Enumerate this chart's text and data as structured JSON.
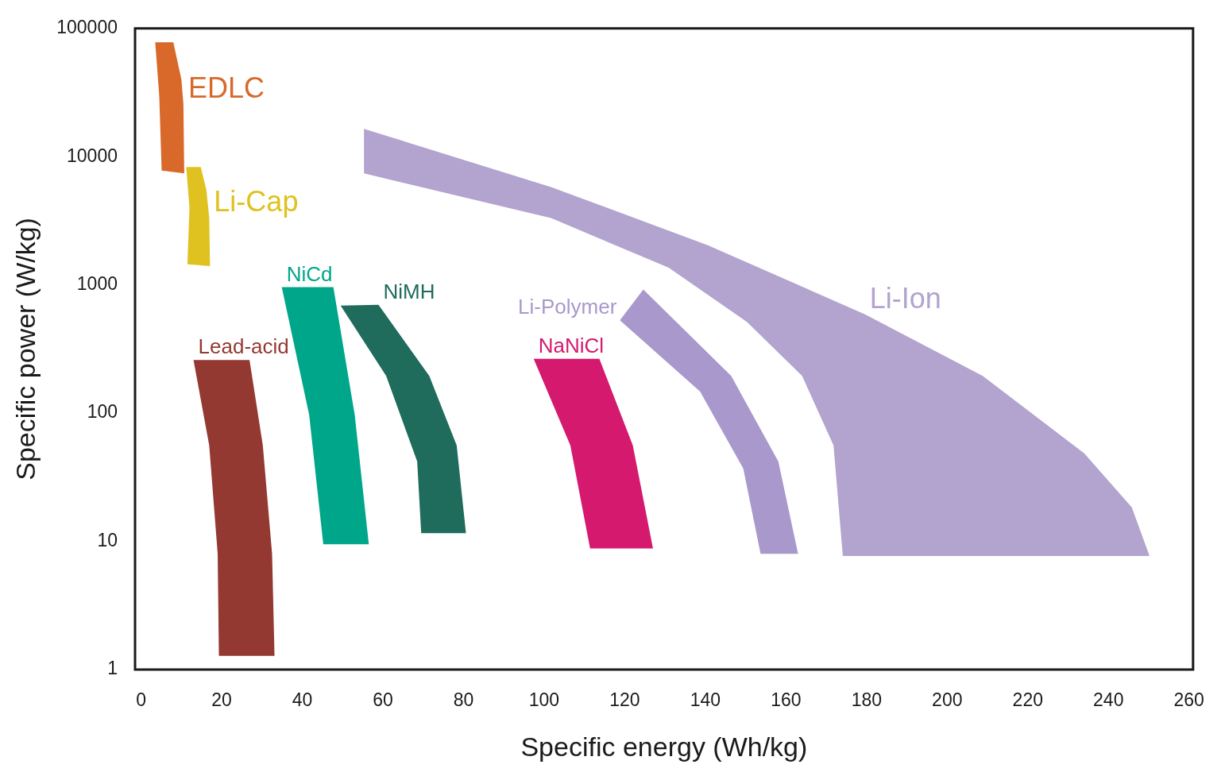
{
  "chart_data": {
    "type": "area",
    "xlabel": "Specific energy (Wh/kg)",
    "ylabel": "Specific power (W/kg)",
    "log": "y",
    "grid": false,
    "legend": false,
    "xlim": [
      -1.5,
      261
    ],
    "xticks": [
      0,
      20,
      40,
      60,
      80,
      100,
      120,
      140,
      160,
      180,
      200,
      220,
      240,
      260
    ],
    "ylim": [
      1,
      100000
    ],
    "yticks": [
      1,
      10,
      100,
      1000,
      10000,
      100000
    ],
    "series": [
      {
        "name": "EDLC",
        "color": "#d8692b",
        "x": [
          10.5,
          10.7,
          5.1,
          4.5,
          3.5,
          8,
          10
        ],
        "values": [
          25700,
          7400,
          7800,
          30000,
          78000,
          78000,
          40000
        ]
      },
      {
        "name": "Li-Cap",
        "color": "#dfc21f",
        "x": [
          16.9,
          17.1,
          11.5,
          12,
          11.2,
          14.8,
          16.2
        ],
        "values": [
          3330,
          1400,
          1450,
          4000,
          8300,
          8300,
          5500
        ]
      },
      {
        "name": "Lead-acid",
        "color": "#943832",
        "x": [
          13,
          26.9,
          30.2,
          32.5,
          33.1,
          19.3,
          19,
          16.9
        ],
        "values": [
          260,
          260,
          56,
          8,
          1.28,
          1.28,
          8,
          56
        ]
      },
      {
        "name": "NiCd",
        "color": "#00a68a",
        "x": [
          34.9,
          47.7,
          53,
          56.5,
          45.2,
          41.7
        ],
        "values": [
          960,
          960,
          97,
          9.5,
          9.5,
          97
        ]
      },
      {
        "name": "NiMH",
        "color": "#1f6b5c",
        "x": [
          58.9,
          71.5,
          78.3,
          80.6,
          69.5,
          68.5,
          60.8,
          49.5
        ],
        "values": [
          700,
          195,
          56,
          11.6,
          11.6,
          42,
          195,
          690
        ]
      },
      {
        "name": "NaNiCl",
        "color": "#d4196f",
        "x": [
          97.4,
          113.7,
          122,
          127,
          111.4,
          106.5
        ],
        "values": [
          265,
          265,
          56,
          8.8,
          8.8,
          56
        ]
      },
      {
        "name": "Li-Polymer",
        "color": "#a898cc",
        "x": [
          118.8,
          124.6,
          146.4,
          158.1,
          163,
          153.7,
          149.4,
          138.7
        ],
        "values": [
          530,
          920,
          195,
          42,
          8,
          8,
          37,
          147
        ]
      },
      {
        "name": "Li-Ion",
        "color": "#b3a3cf",
        "x": [
          179.6,
          208.8,
          234,
          245.8,
          250.2,
          174.1,
          171.8,
          164,
          150.3,
          130.9,
          101.7,
          55.3,
          55.3,
          101.7,
          140.6
        ],
        "values": [
          590,
          195,
          48.6,
          18.4,
          7.7,
          7.7,
          56,
          195,
          515,
          1360,
          3320,
          7400,
          16500,
          5800,
          2040
        ]
      }
    ]
  }
}
